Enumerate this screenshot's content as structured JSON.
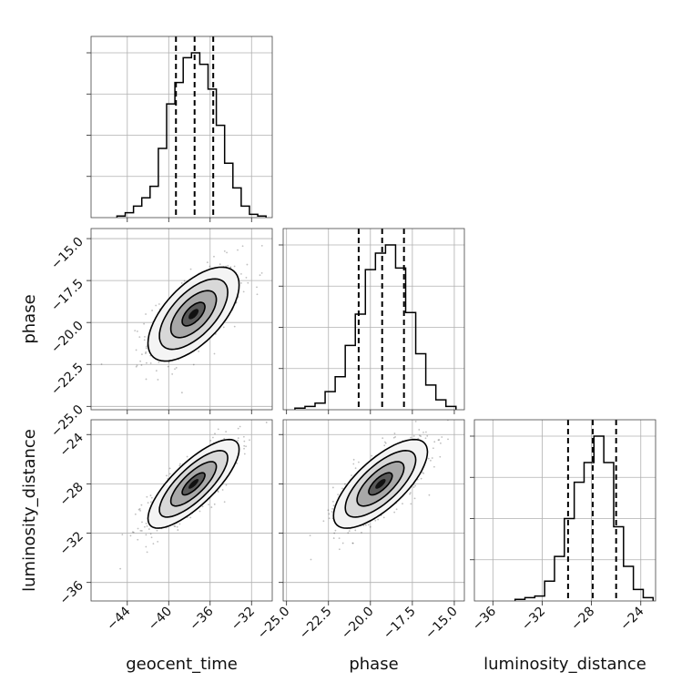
{
  "chart_data": {
    "type": "corner",
    "parameters": [
      "geocent_time",
      "phase",
      "luminosity_distance"
    ],
    "axes": {
      "geocent_time": {
        "range": [
          -47.5,
          -30.0
        ],
        "ticks": [
          -44,
          -40,
          -36,
          -32
        ],
        "tick_labels": [
          "−44",
          "−40",
          "−36",
          "−32"
        ]
      },
      "phase": {
        "range": [
          -25.2,
          -14.4
        ],
        "ticks": [
          -25.0,
          -22.5,
          -20.0,
          -17.5,
          -15.0
        ],
        "tick_labels": [
          "−25.0",
          "−22.5",
          "−20.0",
          "−17.5",
          "−15.0"
        ]
      },
      "luminosity_distance": {
        "range": [
          -37.5,
          -22.8
        ],
        "ticks": [
          -36,
          -32,
          -28,
          -24
        ],
        "tick_labels": [
          "−36",
          "−32",
          "−28",
          "−24"
        ]
      }
    },
    "marginals": [
      {
        "parameter": "geocent_time",
        "bin_edges": [
          -45.0,
          -44.2,
          -43.4,
          -42.6,
          -41.8,
          -41.0,
          -40.2,
          -39.4,
          -38.6,
          -37.8,
          -37.0,
          -36.2,
          -35.4,
          -34.6,
          -33.8,
          -33.0,
          -32.2,
          -31.4,
          -30.6
        ],
        "counts": [
          0.01,
          0.03,
          0.07,
          0.12,
          0.19,
          0.42,
          0.69,
          0.82,
          0.97,
          1.0,
          0.93,
          0.78,
          0.56,
          0.33,
          0.18,
          0.07,
          0.02,
          0.01
        ],
        "quantiles": [
          -39.3,
          -37.5,
          -35.7
        ]
      },
      {
        "parameter": "phase",
        "bin_edges": [
          -24.5,
          -23.9,
          -23.3,
          -22.7,
          -22.1,
          -21.5,
          -20.9,
          -20.3,
          -19.7,
          -19.1,
          -18.5,
          -17.9,
          -17.3,
          -16.7,
          -16.1,
          -15.5,
          -14.9
        ],
        "counts": [
          0.01,
          0.02,
          0.04,
          0.11,
          0.2,
          0.39,
          0.58,
          0.85,
          0.95,
          1.0,
          0.86,
          0.59,
          0.34,
          0.15,
          0.06,
          0.02
        ],
        "quantiles": [
          -20.7,
          -19.3,
          -18.0
        ]
      },
      {
        "parameter": "luminosity_distance",
        "bin_edges": [
          -34.2,
          -33.4,
          -32.6,
          -31.8,
          -31.0,
          -30.2,
          -29.4,
          -28.6,
          -27.8,
          -27.0,
          -26.2,
          -25.4,
          -24.6,
          -23.8,
          -23.0
        ],
        "counts": [
          0.01,
          0.02,
          0.03,
          0.12,
          0.27,
          0.5,
          0.72,
          0.84,
          1.0,
          0.84,
          0.45,
          0.21,
          0.07,
          0.02
        ],
        "quantiles": [
          -29.9,
          -27.9,
          -26.0
        ]
      }
    ],
    "pairs": [
      {
        "x": "geocent_time",
        "y": "phase",
        "center": [
          -37.6,
          -19.5
        ],
        "sigma": [
          2.2,
          1.4
        ],
        "rho": 0.62
      },
      {
        "x": "geocent_time",
        "y": "luminosity_distance",
        "center": [
          -37.6,
          -28.0
        ],
        "sigma": [
          2.2,
          1.8
        ],
        "rho": 0.78
      },
      {
        "x": "phase",
        "y": "luminosity_distance",
        "center": [
          -19.4,
          -28.0
        ],
        "sigma": [
          1.4,
          1.8
        ],
        "rho": 0.72
      }
    ],
    "contour_levels": [
      0.5,
      1.0,
      1.5,
      2.0
    ],
    "grid": true
  }
}
